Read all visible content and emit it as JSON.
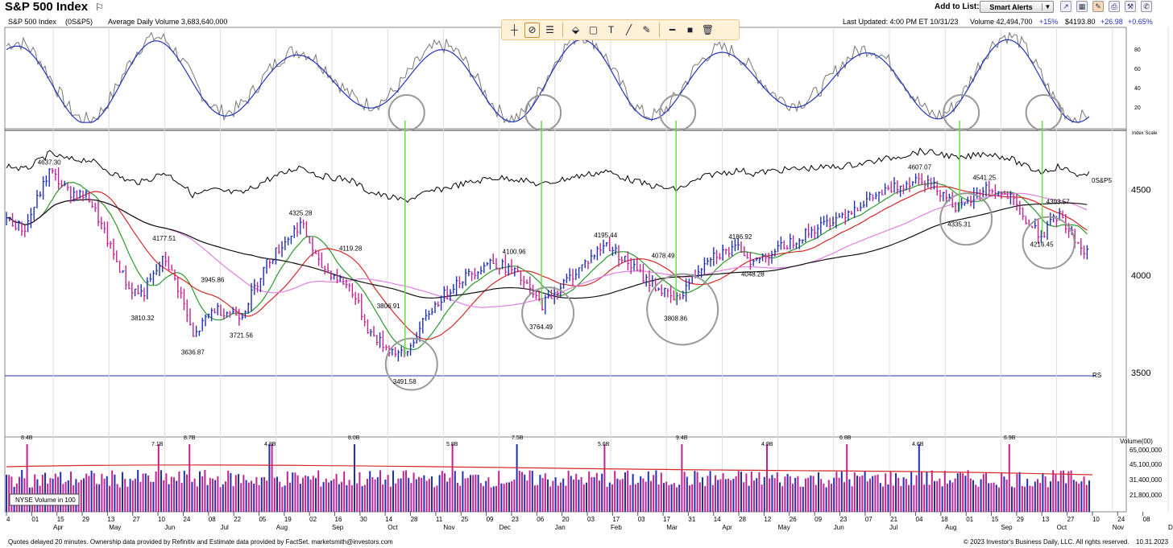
{
  "header": {
    "title": "S&P 500 Index",
    "add_to_list_label": "Add to List:",
    "smart_alerts_label": "Smart Alerts",
    "symbol_label": "S&P 500 Index",
    "symbol_code": "(0S&P5)",
    "avg_volume": "Average Daily Volume 3,683,640,000",
    "last_updated": "Last Updated: 4:00 PM ET 10/31/23",
    "volume": "Volume 42,494,700",
    "volume_change": "+15%",
    "price": "$4193.80",
    "change": "+26.98",
    "change_pct": "+0.65%"
  },
  "toolbar": {
    "tools": [
      "crosshair-tool-icon",
      "hide-drawings-icon",
      "list-icon",
      "paint-icon",
      "rectangle-tool-icon",
      "text-tool-icon",
      "line-tool-icon",
      "pencil-tool-icon",
      "line-weight-icon",
      "color-swatch-icon",
      "trash-icon"
    ]
  },
  "colors": {
    "accent_blue": "#2233bb",
    "bar_up": "#1f2fb0",
    "bar_down": "#c0238f",
    "ma_green": "#2a9a2a",
    "ma_red": "#d62828",
    "ma_pink": "#e080e0",
    "ma_black": "#111111",
    "annotation_green": "#66dd44",
    "circle_gray": "#999999"
  },
  "footer": {
    "left": "Quotes delayed 20 minutes. Ownership data provided by Refinitiv and Estimate data provided by FactSet. marketsmith@investors.com",
    "right": "© 2023 Investor's Business Daily, LLC. All rights reserved.",
    "date": "10.31.2023"
  },
  "chart_data": [
    {
      "type": "line",
      "panel": "stochastic",
      "y_ticks": [
        20,
        40,
        60,
        80
      ],
      "ylim": [
        0,
        100
      ]
    },
    {
      "type": "candlestick",
      "panel": "price",
      "scale_label": "Index Scale",
      "relative_strength_label": "0S&P5",
      "rs_label": "RS",
      "y_ticks": [
        3500,
        4000,
        4500
      ],
      "ylim": [
        3250,
        4850
      ],
      "peaks_troughs": [
        {
          "label": "4637.30",
          "date": "2022-03-29"
        },
        {
          "label": "3810.32",
          "date": "2022-05-20"
        },
        {
          "label": "4177.51",
          "date": "2022-06-01"
        },
        {
          "label": "3636.87",
          "date": "2022-06-17"
        },
        {
          "label": "3945.86",
          "date": "2022-06-28"
        },
        {
          "label": "3721.56",
          "date": "2022-07-14"
        },
        {
          "label": "4325.28",
          "date": "2022-08-16"
        },
        {
          "label": "4119.28",
          "date": "2022-09-13"
        },
        {
          "label": "3806.91",
          "date": "2022-10-04"
        },
        {
          "label": "3491.58",
          "date": "2022-10-13"
        },
        {
          "label": "4100.96",
          "date": "2022-12-13"
        },
        {
          "label": "3764.49",
          "date": "2022-12-28"
        },
        {
          "label": "4195.44",
          "date": "2023-02-02"
        },
        {
          "label": "4078.49",
          "date": "2023-03-06"
        },
        {
          "label": "3808.86",
          "date": "2023-03-13"
        },
        {
          "label": "4186.92",
          "date": "2023-04-18"
        },
        {
          "label": "4048.28",
          "date": "2023-04-25"
        },
        {
          "label": "4607.07",
          "date": "2023-07-27"
        },
        {
          "label": "4541.25",
          "date": "2023-09-01"
        },
        {
          "label": "4335.31",
          "date": "2023-08-18"
        },
        {
          "label": "4393.57",
          "date": "2023-10-12"
        },
        {
          "label": "4216.45",
          "date": "2023-10-03"
        }
      ],
      "close_path": [
        [
          "2022-03-04",
          4330
        ],
        [
          "2022-03-15",
          4260
        ],
        [
          "2022-03-29",
          4620
        ],
        [
          "2022-04-08",
          4490
        ],
        [
          "2022-04-20",
          4450
        ],
        [
          "2022-05-02",
          4150
        ],
        [
          "2022-05-12",
          3930
        ],
        [
          "2022-05-20",
          3900
        ],
        [
          "2022-06-01",
          4100
        ],
        [
          "2022-06-10",
          3900
        ],
        [
          "2022-06-17",
          3670
        ],
        [
          "2022-06-28",
          3820
        ],
        [
          "2022-07-14",
          3790
        ],
        [
          "2022-07-28",
          4070
        ],
        [
          "2022-08-16",
          4300
        ],
        [
          "2022-08-26",
          4060
        ],
        [
          "2022-09-13",
          3930
        ],
        [
          "2022-09-23",
          3700
        ],
        [
          "2022-10-03",
          3620
        ],
        [
          "2022-10-13",
          3580
        ],
        [
          "2022-10-27",
          3810
        ],
        [
          "2022-11-10",
          3960
        ],
        [
          "2022-11-30",
          4080
        ],
        [
          "2022-12-13",
          4020
        ],
        [
          "2022-12-28",
          3840
        ],
        [
          "2023-01-13",
          3990
        ],
        [
          "2023-02-02",
          4180
        ],
        [
          "2023-02-24",
          3980
        ],
        [
          "2023-03-13",
          3860
        ],
        [
          "2023-03-31",
          4110
        ],
        [
          "2023-04-18",
          4150
        ],
        [
          "2023-04-25",
          4070
        ],
        [
          "2023-05-18",
          4200
        ],
        [
          "2023-06-12",
          4340
        ],
        [
          "2023-06-30",
          4450
        ],
        [
          "2023-07-27",
          4580
        ],
        [
          "2023-08-10",
          4470
        ],
        [
          "2023-08-18",
          4370
        ],
        [
          "2023-09-01",
          4515
        ],
        [
          "2023-09-15",
          4450
        ],
        [
          "2023-09-26",
          4280
        ],
        [
          "2023-10-03",
          4230
        ],
        [
          "2023-10-12",
          4350
        ],
        [
          "2023-10-27",
          4120
        ],
        [
          "2023-10-31",
          4193.8
        ]
      ],
      "moving_averages": [
        {
          "color": "ma_green"
        },
        {
          "color": "ma_red"
        },
        {
          "color": "ma_pink"
        },
        {
          "color": "ma_black"
        }
      ],
      "circled_bottoms": [
        "2022-10-13",
        "2022-12-28",
        "2023-03-13",
        "2023-08-18",
        "2023-10-03"
      ]
    },
    {
      "type": "bar",
      "panel": "volume",
      "label": "NYSE Volume in 100",
      "axis_title": "Volume(00)",
      "y_ticks": [
        "65,000,000",
        "45,100,000",
        "31,400,000",
        "21,800,000"
      ],
      "peak_labels": [
        "8.4B",
        "7.1B",
        "8.7B",
        "4.8B",
        "8.0B",
        "5.8B",
        "7.5B",
        "5.6B",
        "9.4B",
        "4.9B",
        "6.8B",
        "4.6B",
        "6.9B"
      ]
    }
  ],
  "x_axis": {
    "ticks": [
      "4",
      "01",
      "15",
      "29",
      "13",
      "27",
      "10",
      "24",
      "08",
      "22",
      "05",
      "19",
      "02",
      "16",
      "30",
      "14",
      "28",
      "11",
      "25",
      "09",
      "23",
      "06",
      "20",
      "03",
      "17",
      "03",
      "17",
      "31",
      "14",
      "28",
      "12",
      "26",
      "09",
      "23",
      "07",
      "21",
      "04",
      "18",
      "01",
      "15",
      "29",
      "13",
      "27",
      "10",
      "24",
      "08"
    ],
    "months": [
      "Apr",
      "May",
      "Jun",
      "Jul",
      "Aug",
      "Sep",
      "Oct",
      "Nov",
      "Dec",
      "Jan",
      "Feb",
      "Mar",
      "Apr",
      "May",
      "Jun",
      "Jul",
      "Aug",
      "Sep",
      "Oct",
      "Nov",
      "Dec"
    ]
  }
}
